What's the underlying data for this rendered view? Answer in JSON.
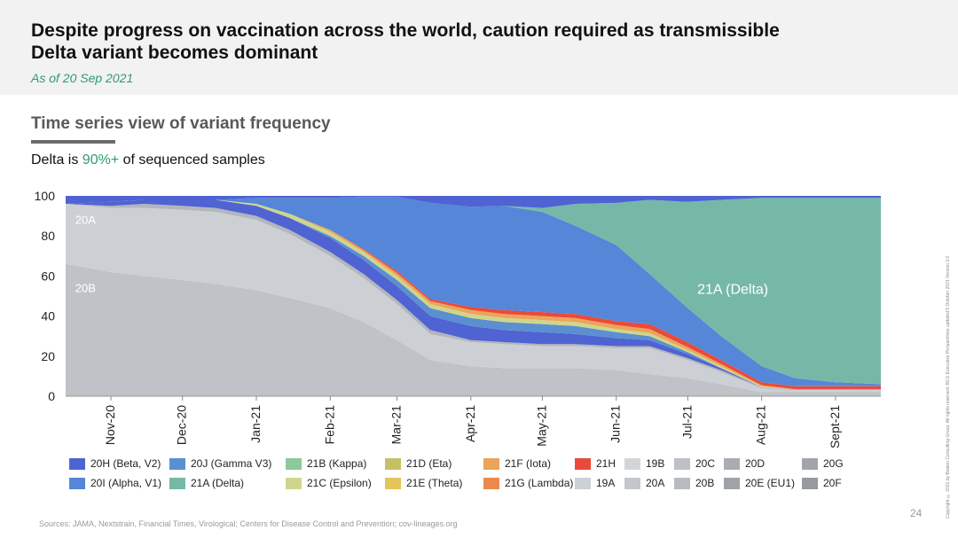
{
  "header": {
    "title": "Despite progress on vaccination across the world, caution required as transmissible Delta variant becomes dominant",
    "as_of": "As of 20 Sep 2021"
  },
  "section": {
    "title": "Time series view of variant frequency",
    "subtitle_pre": "Delta is ",
    "subtitle_highlight": "90%+",
    "subtitle_post": " of sequenced samples"
  },
  "chart_data": {
    "type": "area",
    "stacking": "stacked to 100%",
    "ylim": [
      0,
      100
    ],
    "y_ticks": [
      "0",
      "20",
      "40",
      "60",
      "80",
      "100"
    ],
    "x_ticks": [
      "Nov-20",
      "Dec-20",
      "Jan-21",
      "Feb-21",
      "Mar-21",
      "Apr-21",
      "May-21",
      "Jun-21",
      "Jul-21",
      "Aug-21",
      "Sept-21"
    ],
    "annotations": [
      "20A",
      "20B",
      "21A (Delta)"
    ],
    "x": [
      "2020-10-13",
      "2020-11-01",
      "2020-11-15",
      "2020-12-01",
      "2020-12-15",
      "2021-01-01",
      "2021-01-15",
      "2021-02-01",
      "2021-02-15",
      "2021-03-01",
      "2021-03-15",
      "2021-04-01",
      "2021-04-15",
      "2021-05-01",
      "2021-05-15",
      "2021-06-01",
      "2021-06-15",
      "2021-07-01",
      "2021-07-15",
      "2021-08-01",
      "2021-08-15",
      "2021-09-01",
      "2021-09-20"
    ],
    "series": [
      {
        "name": "20B",
        "color": "#bfc3c8",
        "values": [
          66,
          62,
          60,
          58,
          56,
          53,
          49,
          44,
          37,
          28,
          18,
          15,
          14,
          14,
          14,
          13,
          11,
          9,
          6,
          2,
          2,
          2,
          2
        ]
      },
      {
        "name": "20A",
        "color": "#ccd0d4",
        "values": [
          30,
          32,
          34,
          35,
          36,
          35,
          32,
          26,
          22,
          18,
          13,
          12,
          12,
          11,
          11,
          11,
          13,
          9,
          6,
          2,
          1,
          1,
          1
        ]
      },
      {
        "name": "20G",
        "color": "#b3b6ba",
        "values": [
          0,
          1,
          2,
          2,
          2,
          2,
          2,
          2,
          2,
          2,
          2,
          1,
          1,
          1,
          1,
          1,
          1,
          1,
          1,
          0.5,
          0.5,
          0.5,
          0.5
        ]
      },
      {
        "name": "20H (Beta, V2)",
        "color": "#4f63d2",
        "values": [
          0,
          2,
          2,
          3,
          4,
          5,
          6,
          7,
          7,
          7,
          7,
          7,
          6,
          6,
          5,
          4,
          3,
          2,
          1,
          0,
          0,
          0,
          0
        ]
      },
      {
        "name": "20J (Gamma V3)",
        "color": "#5b8fcf",
        "values": [
          0,
          0,
          0,
          0,
          0,
          0,
          0,
          1,
          2,
          3,
          4,
          4,
          4,
          4,
          4,
          3,
          2,
          1,
          0,
          0,
          0,
          0,
          0
        ]
      },
      {
        "name": "21C (Epsilon)",
        "color": "#cfd68c",
        "values": [
          0,
          0,
          0,
          0,
          0,
          1,
          2,
          2,
          2,
          2,
          2,
          2,
          2,
          2,
          2,
          1.5,
          1.5,
          1,
          1,
          0.5,
          0,
          0,
          0
        ]
      },
      {
        "name": "21F (Iota)",
        "color": "#eaa55a",
        "values": [
          0,
          0,
          0,
          0,
          0,
          0,
          0,
          1,
          1,
          1.5,
          1.5,
          2,
          2,
          2,
          2,
          2,
          2,
          1.5,
          1,
          0.5,
          0,
          0,
          0
        ]
      },
      {
        "name": "21H",
        "color": "#ea4a3a",
        "values": [
          0,
          0,
          0,
          0,
          0,
          0,
          0,
          0,
          0.5,
          1,
          1,
          1.5,
          2,
          2,
          2,
          2,
          2.5,
          2.5,
          2,
          1.5,
          1.5,
          1.5,
          1.5
        ]
      },
      {
        "name": "20I (Alpha, V1)",
        "color": "#5586d8",
        "values": [
          0,
          0,
          0,
          0,
          0,
          3,
          8,
          16,
          26,
          37,
          48,
          50,
          52,
          50,
          44,
          38,
          25,
          17,
          12,
          8,
          4,
          2,
          1
        ]
      },
      {
        "name": "21A (Delta)",
        "color": "#76b8a8",
        "values": [
          0,
          0,
          0,
          0,
          0,
          0,
          0,
          0,
          0,
          0,
          0,
          0,
          0,
          2,
          11,
          21,
          37,
          53,
          68,
          84,
          90,
          92,
          93
        ]
      }
    ]
  },
  "legend": [
    {
      "label": "20H (Beta, V2)",
      "color": "#4f63d2"
    },
    {
      "label": "20I (Alpha, V1)",
      "color": "#5586d8"
    },
    {
      "label": "20J (Gamma V3)",
      "color": "#5b8fcf"
    },
    {
      "label": "21A (Delta)",
      "color": "#76b8a8"
    },
    {
      "label": "21B (Kappa)",
      "color": "#8ec99c"
    },
    {
      "label": "21C (Epsilon)",
      "color": "#cfd68c"
    },
    {
      "label": "21D (Eta)",
      "color": "#c6bf66"
    },
    {
      "label": "21E (Theta)",
      "color": "#e4c55a"
    },
    {
      "label": "21F (Iota)",
      "color": "#eaa55a"
    },
    {
      "label": "21G (Lambda)",
      "color": "#ec8a4e"
    },
    {
      "label": "21H",
      "color": "#ea4a3a"
    },
    {
      "label": "19A",
      "color": "#cdd1d4"
    },
    {
      "label": "19B",
      "color": "#d3d6d9"
    },
    {
      "label": "20A",
      "color": "#c3c7cb"
    },
    {
      "label": "20C",
      "color": "#bcc0c4"
    },
    {
      "label": "20B",
      "color": "#b8bcc0"
    },
    {
      "label": "20D",
      "color": "#a9adb1"
    },
    {
      "label": "20E (EU1)",
      "color": "#9fa3a7"
    },
    {
      "label": "20G",
      "color": "#a1a4a8"
    },
    {
      "label": "20F",
      "color": "#96999d"
    }
  ],
  "footer": {
    "sources": "Sources: JAMA, Nextstrain, Financial Times, Virological; Centers for Disease Control and Prevention; cov-lineages.org",
    "page_number": "24",
    "copyright": "Copyright © 2021 by Boston Consulting Group. All rights reserved. BCG Executive Perspectives updated 5 October 2021 Version 3.0"
  }
}
